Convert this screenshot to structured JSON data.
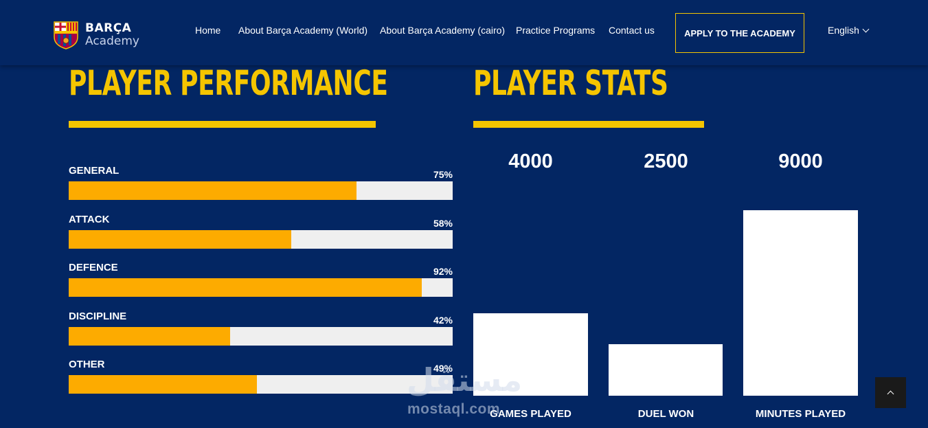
{
  "header": {
    "brand": "BARÇA",
    "brand_sub": "Academy",
    "nav": [
      {
        "label": "Home"
      },
      {
        "label": "About Barça Academy (World)"
      },
      {
        "label": "About Barça Academy (cairo)"
      },
      {
        "label": "Practice Programs"
      },
      {
        "label": "Contact us"
      }
    ],
    "apply_label": "APPLY TO THE ACADEMY",
    "language": "English"
  },
  "performance": {
    "title": "PLAYER PERFORMANCE",
    "items": [
      {
        "label": "GENERAL",
        "pct_text": "75%",
        "value": 75
      },
      {
        "label": "ATTACK",
        "pct_text": "58%",
        "value": 58
      },
      {
        "label": "DEFENCE",
        "pct_text": "92%",
        "value": 92
      },
      {
        "label": "DISCIPLINE",
        "pct_text": "42%",
        "value": 42
      },
      {
        "label": "OTHER",
        "pct_text": "49%",
        "value": 49
      }
    ]
  },
  "stats": {
    "title": "PLAYER STATS",
    "items": [
      {
        "label": "GAMES PLAYED",
        "value_text": "4000",
        "value": 4000
      },
      {
        "label": "DUEL WON",
        "value_text": "2500",
        "value": 2500
      },
      {
        "label": "MINUTES PLAYED",
        "value_text": "9000",
        "value": 9000
      }
    ]
  },
  "watermark": {
    "arabic": "مستقل",
    "latin": "mostaql.com"
  },
  "icons": {
    "language_toggle": "chevron-down-icon",
    "scroll_top": "chevron-up-icon",
    "logo": "fc-barcelona-crest-icon"
  },
  "colors": {
    "background": "#032663",
    "accent_yellow": "#f5c500",
    "bar_fill": "#fdab00",
    "bar_track": "#efefef"
  }
}
